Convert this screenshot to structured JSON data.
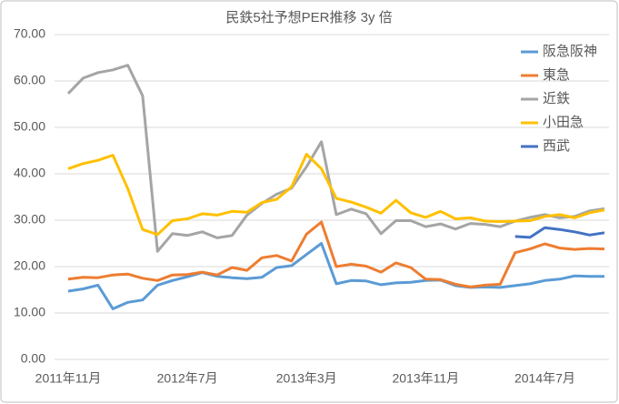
{
  "chart_data": {
    "type": "line",
    "title": "民鉄5社予想PER推移 3y 倍",
    "categories": [
      "2011年11月",
      null,
      null,
      null,
      null,
      null,
      null,
      null,
      "2012年7月",
      null,
      null,
      null,
      null,
      null,
      null,
      null,
      "2013年3月",
      null,
      null,
      null,
      null,
      null,
      null,
      null,
      "2013年11月",
      null,
      null,
      null,
      null,
      null,
      null,
      null,
      "2014年7月",
      null,
      null,
      null,
      null
    ],
    "ylim": [
      0,
      70
    ],
    "yticks": [
      {
        "value": 0,
        "label": "0.00"
      },
      {
        "value": 10,
        "label": "10.00"
      },
      {
        "value": 20,
        "label": "20.00"
      },
      {
        "value": 30,
        "label": "30.00"
      },
      {
        "value": 40,
        "label": "40.00"
      },
      {
        "value": 50,
        "label": "50.00"
      },
      {
        "value": 60,
        "label": "60.00"
      },
      {
        "value": 70,
        "label": "70.00"
      }
    ],
    "grid": true,
    "legend": "top-right",
    "series": [
      {
        "name": "阪急阪神",
        "color": "#5b9bd5",
        "values": [
          14.7,
          15.2,
          16.0,
          10.9,
          12.3,
          12.8,
          16.0,
          17.0,
          17.8,
          18.7,
          17.9,
          17.6,
          17.4,
          17.7,
          19.8,
          20.2,
          22.6,
          25.0,
          16.3,
          17.0,
          16.9,
          16.1,
          16.5,
          16.6,
          17.0,
          17.1,
          15.9,
          15.5,
          15.6,
          15.5,
          15.9,
          16.3,
          17.0,
          17.3,
          18.0,
          17.9,
          17.9
        ]
      },
      {
        "name": "東急",
        "color": "#ed7d31",
        "values": [
          17.3,
          17.7,
          17.6,
          18.2,
          18.4,
          17.5,
          17.0,
          18.2,
          18.3,
          18.8,
          18.2,
          19.8,
          19.2,
          21.9,
          22.4,
          21.2,
          27.0,
          29.6,
          20.0,
          20.5,
          20.1,
          18.8,
          20.8,
          19.8,
          17.3,
          17.2,
          16.2,
          15.6,
          16.0,
          16.2,
          23.0,
          23.8,
          24.9,
          24.0,
          23.7,
          23.9,
          23.8
        ]
      },
      {
        "name": "近鉄",
        "color": "#a5a5a5",
        "values": [
          57.3,
          60.6,
          61.8,
          62.4,
          63.4,
          56.8,
          23.3,
          27.1,
          26.7,
          27.5,
          26.2,
          26.7,
          31.1,
          33.6,
          35.6,
          36.9,
          41.5,
          46.9,
          31.2,
          32.4,
          31.4,
          27.1,
          29.9,
          29.9,
          28.6,
          29.2,
          28.1,
          29.3,
          29.1,
          28.6,
          29.8,
          30.6,
          31.2,
          30.5,
          30.8,
          32.0,
          32.5
        ]
      },
      {
        "name": "小田急",
        "color": "#ffc000",
        "values": [
          41.1,
          42.2,
          42.9,
          44.0,
          36.8,
          28.0,
          26.9,
          29.9,
          30.3,
          31.4,
          31.1,
          31.9,
          31.7,
          33.8,
          34.5,
          37.2,
          44.2,
          41.1,
          34.7,
          33.9,
          32.8,
          31.5,
          34.3,
          31.6,
          30.6,
          31.9,
          30.3,
          30.5,
          29.8,
          29.7,
          29.8,
          29.9,
          30.8,
          31.2,
          30.5,
          31.6,
          32.2
        ]
      },
      {
        "name": "西武",
        "color": "#4472c4",
        "values": [
          null,
          null,
          null,
          null,
          null,
          null,
          null,
          null,
          null,
          null,
          null,
          null,
          null,
          null,
          null,
          null,
          null,
          null,
          null,
          null,
          null,
          null,
          null,
          null,
          null,
          null,
          null,
          null,
          null,
          null,
          26.5,
          26.3,
          28.4,
          28.0,
          27.5,
          26.8,
          27.3
        ]
      }
    ]
  }
}
